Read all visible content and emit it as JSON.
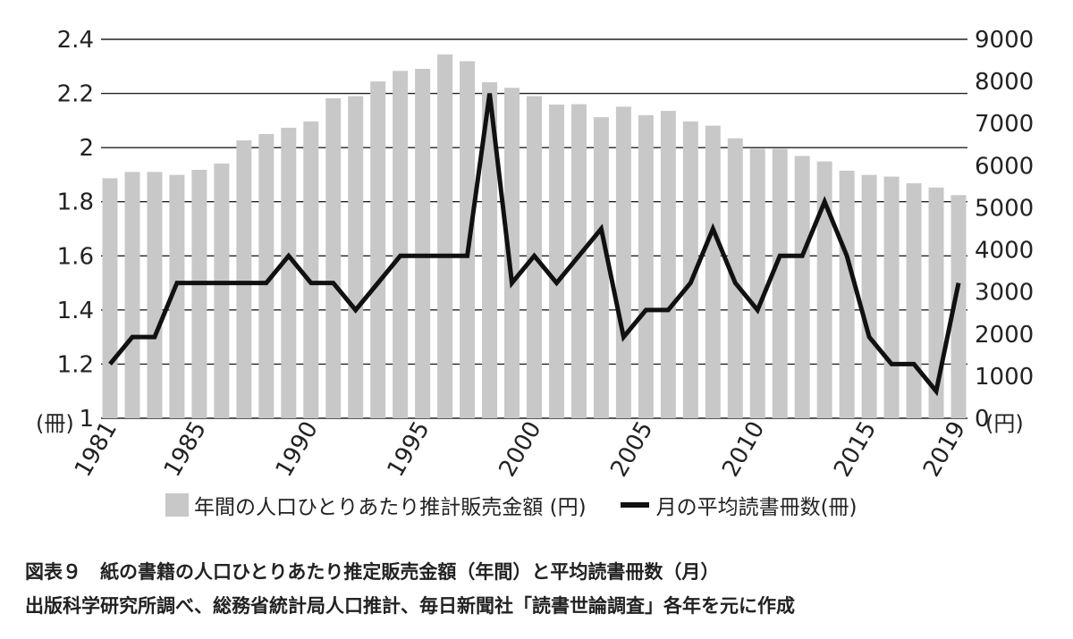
{
  "chart_data": {
    "type": "bar+line",
    "x": [
      1981,
      1982,
      1983,
      1984,
      1985,
      1986,
      1987,
      1988,
      1989,
      1990,
      1991,
      1992,
      1993,
      1994,
      1995,
      1996,
      1997,
      1998,
      1999,
      2000,
      2001,
      2002,
      2003,
      2004,
      2005,
      2006,
      2007,
      2008,
      2009,
      2010,
      2011,
      2012,
      2013,
      2014,
      2015,
      2016,
      2017,
      2018,
      2019
    ],
    "x_tick_labels": [
      "1981",
      "1985",
      "1990",
      "1995",
      "2000",
      "2005",
      "2010",
      "2015",
      "2019"
    ],
    "x_tick_values": [
      1981,
      1985,
      1990,
      1995,
      2000,
      2005,
      2010,
      2015,
      2019
    ],
    "series": [
      {
        "name": "年間の人口ひとりあたり推計販売金額 (円)",
        "type": "bar",
        "axis": "right",
        "color": "#c8c8c8",
        "values": [
          5700,
          5850,
          5850,
          5780,
          5900,
          6050,
          6600,
          6750,
          6900,
          7050,
          7600,
          7650,
          8000,
          8250,
          8300,
          8640,
          8480,
          7980,
          7850,
          7650,
          7450,
          7460,
          7150,
          7400,
          7200,
          7300,
          7050,
          6950,
          6650,
          6400,
          6400,
          6230,
          6100,
          5880,
          5780,
          5740,
          5580,
          5480,
          5300
        ]
      },
      {
        "name": "月の平均読書冊数(冊)",
        "type": "line",
        "axis": "left",
        "color": "#111111",
        "values": [
          1.2,
          1.3,
          1.3,
          1.5,
          1.5,
          1.5,
          1.5,
          1.5,
          1.6,
          1.5,
          1.5,
          1.4,
          1.5,
          1.6,
          1.6,
          1.6,
          1.6,
          2.2,
          1.5,
          1.6,
          1.5,
          1.6,
          1.7,
          1.3,
          1.4,
          1.4,
          1.5,
          1.7,
          1.5,
          1.4,
          1.6,
          1.6,
          1.8,
          1.6,
          1.3,
          1.2,
          1.2,
          1.1,
          1.5
        ]
      }
    ],
    "left_axis": {
      "ticks": [
        "1",
        "1.2",
        "1.4",
        "1.6",
        "1.8",
        "2",
        "2.2",
        "2.4"
      ],
      "range": [
        1,
        2.4
      ],
      "unit": "(冊)"
    },
    "right_axis": {
      "ticks": [
        "0",
        "1000",
        "2000",
        "3000",
        "4000",
        "5000",
        "6000",
        "7000",
        "8000",
        "9000"
      ],
      "range": [
        0,
        9000
      ],
      "unit": "(円)"
    },
    "grid": "horizontal",
    "legend_position": "bottom"
  },
  "legend": {
    "bar_label": "年間の人口ひとりあたり推計販売金額 (円)",
    "line_label": "月の平均読書冊数(冊)"
  },
  "caption": {
    "line1": "図表９　紙の書籍の人口ひとりあたり推定販売金額（年間）と平均読書冊数（月）",
    "line2": "出版科学研究所調べ、総務省統計局人口推計、毎日新聞社「読書世論調査」各年を元に作成"
  }
}
